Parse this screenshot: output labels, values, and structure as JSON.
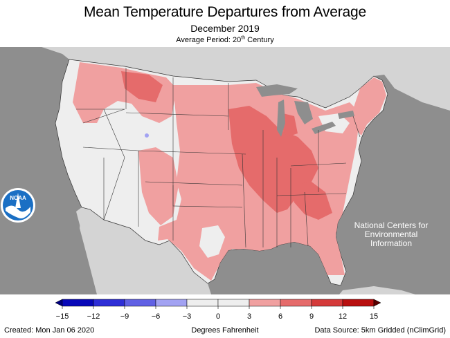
{
  "title": "Mean Temperature Departures from Average",
  "subtitle": "December 2019",
  "average_period": {
    "prefix": "Average Period: 20",
    "superscript": "th",
    "suffix": " Century"
  },
  "ncei": {
    "line1": "National Centers for",
    "line2": "Environmental",
    "line3": "Information"
  },
  "logo": {
    "text": "NOAA",
    "icon": "noaa-logo-icon"
  },
  "legend": {
    "ticks": [
      "−15",
      "−12",
      "−9",
      "−6",
      "−3",
      "0",
      "3",
      "6",
      "9",
      "12",
      "15"
    ],
    "bins": [
      {
        "from": -15,
        "to": -12,
        "color": "#0808b8"
      },
      {
        "from": -12,
        "to": -9,
        "color": "#2e2ed6"
      },
      {
        "from": -9,
        "to": -6,
        "color": "#6060e4"
      },
      {
        "from": -6,
        "to": -3,
        "color": "#a2a2f2"
      },
      {
        "from": -3,
        "to": 0,
        "color": "#eeeeee"
      },
      {
        "from": 0,
        "to": 3,
        "color": "#eeeeee"
      },
      {
        "from": 3,
        "to": 6,
        "color": "#f0a0a0"
      },
      {
        "from": 6,
        "to": 9,
        "color": "#e56b6b"
      },
      {
        "from": 9,
        "to": 12,
        "color": "#d43a3a"
      },
      {
        "from": 12,
        "to": 15,
        "color": "#b80f0f"
      }
    ],
    "below_color": "#000080",
    "above_color": "#5a0000"
  },
  "colors": {
    "ocean": "#8e8e8e",
    "land_outside": "#d4d4d4",
    "near_normal": "#eeeeee",
    "warm_light": "#f0a0a0",
    "warm_medium": "#e56b6b",
    "cool_light": "#a2a2f2"
  },
  "footer": {
    "created": "Created: Mon Jan 06 2020",
    "units": "Degrees Fahrenheit",
    "source": "Data Source: 5km Gridded (nClimGrid)"
  }
}
